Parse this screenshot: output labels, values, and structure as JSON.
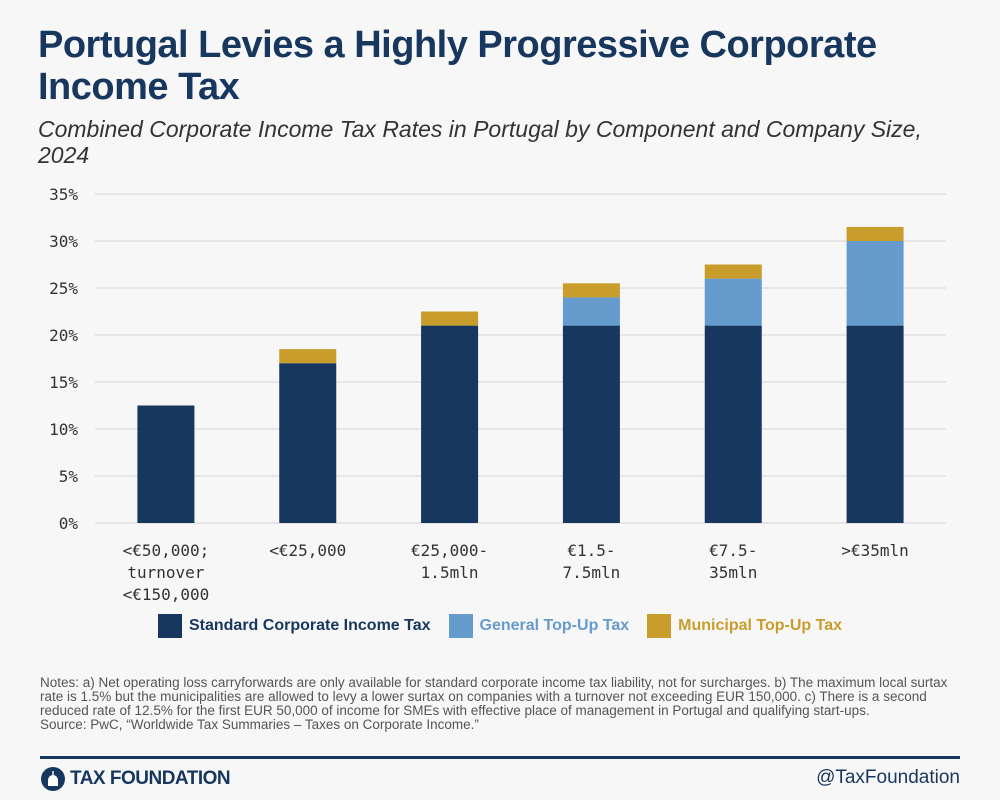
{
  "title": "Portugal Levies a Highly Progressive Corporate Income Tax",
  "subtitle": "Combined Corporate Income Tax Rates in Portugal by Component and Company Size, 2024",
  "chart_data": {
    "type": "bar",
    "stacked": true,
    "categories": [
      "<€50,000; turnover <€150,000",
      "<€25,000",
      "€25,000-1.5mln",
      "€1.5-7.5mln",
      "€7.5-35mln",
      ">€35mln"
    ],
    "category_lines": [
      [
        "<€50,000;",
        "turnover",
        "<€150,000"
      ],
      [
        "<€25,000"
      ],
      [
        "€25,000-",
        "1.5mln"
      ],
      [
        "€1.5-",
        "7.5mln"
      ],
      [
        "€7.5-",
        "35mln"
      ],
      [
        ">€35mln"
      ]
    ],
    "series": [
      {
        "name": "Standard Corporate Income Tax",
        "color": "#17375e",
        "values": [
          12.5,
          17,
          21,
          21,
          21,
          21
        ]
      },
      {
        "name": "General Top-Up Tax",
        "color": "#659bcd",
        "values": [
          0,
          0,
          0,
          3,
          5,
          9
        ]
      },
      {
        "name": "Municipal Top-Up Tax",
        "color": "#c99d2c",
        "values": [
          0,
          1.5,
          1.5,
          1.5,
          1.5,
          1.5
        ]
      }
    ],
    "ylim": [
      0,
      35
    ],
    "yticks": [
      "0%",
      "5%",
      "10%",
      "15%",
      "20%",
      "25%",
      "30%",
      "35%"
    ],
    "grid": true,
    "legend_position": "bottom"
  },
  "notes": "Notes: a) Net operating loss carryforwards are only available for standard corporate income tax liability, not for surcharges. b) The maximum local surtax rate is 1.5% but the municipalities are allowed to levy a lower surtax on companies with a turnover not exceeding EUR 150,000. c) There is a second reduced rate of 12.5% for the first EUR 50,000 of income for SMEs with effective place of management in Portugal and qualifying start-ups.",
  "source": "Source: PwC, “Worldwide Tax Summaries – Taxes on Corporate Income.”",
  "footer": {
    "logo": "TAX FOUNDATION",
    "handle": "@TaxFoundation"
  }
}
